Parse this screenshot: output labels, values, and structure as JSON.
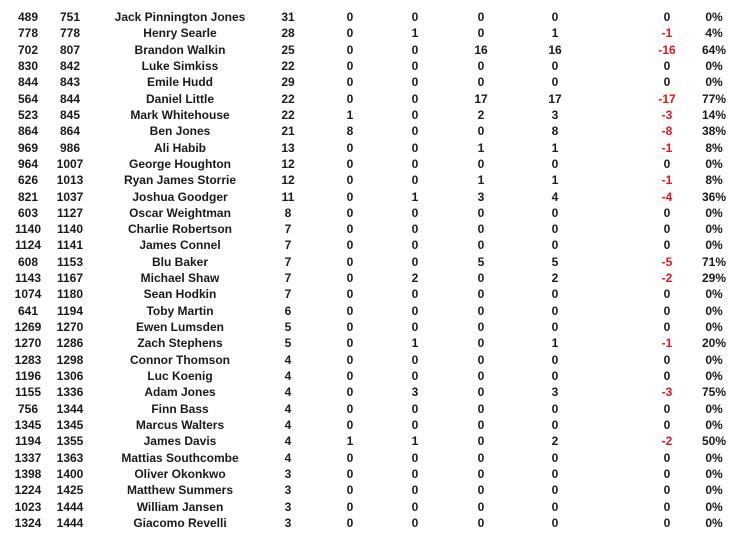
{
  "colors": {
    "text": "#1a1a1a",
    "negative": "#e0161b"
  },
  "rows": [
    [
      "489",
      "751",
      "Jack Pinnington Jones",
      "31",
      "0",
      "0",
      "0",
      "0",
      "0",
      "0%"
    ],
    [
      "778",
      "778",
      "Henry Searle",
      "28",
      "0",
      "1",
      "0",
      "1",
      "-1",
      "4%"
    ],
    [
      "702",
      "807",
      "Brandon Walkin",
      "25",
      "0",
      "0",
      "16",
      "16",
      "-16",
      "64%"
    ],
    [
      "830",
      "842",
      "Luke Simkiss",
      "22",
      "0",
      "0",
      "0",
      "0",
      "0",
      "0%"
    ],
    [
      "844",
      "843",
      "Emile Hudd",
      "29",
      "0",
      "0",
      "0",
      "0",
      "0",
      "0%"
    ],
    [
      "564",
      "844",
      "Daniel Little",
      "22",
      "0",
      "0",
      "17",
      "17",
      "-17",
      "77%"
    ],
    [
      "523",
      "845",
      "Mark Whitehouse",
      "22",
      "1",
      "0",
      "2",
      "3",
      "-3",
      "14%"
    ],
    [
      "864",
      "864",
      "Ben Jones",
      "21",
      "8",
      "0",
      "0",
      "8",
      "-8",
      "38%"
    ],
    [
      "969",
      "986",
      "Ali Habib",
      "13",
      "0",
      "0",
      "1",
      "1",
      "-1",
      "8%"
    ],
    [
      "964",
      "1007",
      "George Houghton",
      "12",
      "0",
      "0",
      "0",
      "0",
      "0",
      "0%"
    ],
    [
      "626",
      "1013",
      "Ryan James Storrie",
      "12",
      "0",
      "0",
      "1",
      "1",
      "-1",
      "8%"
    ],
    [
      "821",
      "1037",
      "Joshua Goodger",
      "11",
      "0",
      "1",
      "3",
      "4",
      "-4",
      "36%"
    ],
    [
      "603",
      "1127",
      "Oscar Weightman",
      "8",
      "0",
      "0",
      "0",
      "0",
      "0",
      "0%"
    ],
    [
      "1140",
      "1140",
      "Charlie Robertson",
      "7",
      "0",
      "0",
      "0",
      "0",
      "0",
      "0%"
    ],
    [
      "1124",
      "1141",
      "James Connel",
      "7",
      "0",
      "0",
      "0",
      "0",
      "0",
      "0%"
    ],
    [
      "608",
      "1153",
      "Blu Baker",
      "7",
      "0",
      "0",
      "5",
      "5",
      "-5",
      "71%"
    ],
    [
      "1143",
      "1167",
      "Michael Shaw",
      "7",
      "0",
      "2",
      "0",
      "2",
      "-2",
      "29%"
    ],
    [
      "1074",
      "1180",
      "Sean Hodkin",
      "7",
      "0",
      "0",
      "0",
      "0",
      "0",
      "0%"
    ],
    [
      "641",
      "1194",
      "Toby Martin",
      "6",
      "0",
      "0",
      "0",
      "0",
      "0",
      "0%"
    ],
    [
      "1269",
      "1270",
      "Ewen Lumsden",
      "5",
      "0",
      "0",
      "0",
      "0",
      "0",
      "0%"
    ],
    [
      "1270",
      "1286",
      "Zach Stephens",
      "5",
      "0",
      "1",
      "0",
      "1",
      "-1",
      "20%"
    ],
    [
      "1283",
      "1298",
      "Connor Thomson",
      "4",
      "0",
      "0",
      "0",
      "0",
      "0",
      "0%"
    ],
    [
      "1196",
      "1306",
      "Luc Koenig",
      "4",
      "0",
      "0",
      "0",
      "0",
      "0",
      "0%"
    ],
    [
      "1155",
      "1336",
      "Adam Jones",
      "4",
      "0",
      "3",
      "0",
      "3",
      "-3",
      "75%"
    ],
    [
      "756",
      "1344",
      "Finn Bass",
      "4",
      "0",
      "0",
      "0",
      "0",
      "0",
      "0%"
    ],
    [
      "1345",
      "1345",
      "Marcus Walters",
      "4",
      "0",
      "0",
      "0",
      "0",
      "0",
      "0%"
    ],
    [
      "1194",
      "1355",
      "James Davis",
      "4",
      "1",
      "1",
      "0",
      "2",
      "-2",
      "50%"
    ],
    [
      "1337",
      "1363",
      "Mattias Southcombe",
      "4",
      "0",
      "0",
      "0",
      "0",
      "0",
      "0%"
    ],
    [
      "1398",
      "1400",
      "Oliver Okonkwo",
      "3",
      "0",
      "0",
      "0",
      "0",
      "0",
      "0%"
    ],
    [
      "1224",
      "1425",
      "Matthew Summers",
      "3",
      "0",
      "0",
      "0",
      "0",
      "0",
      "0%"
    ],
    [
      "1023",
      "1444",
      "William Jansen",
      "3",
      "0",
      "0",
      "0",
      "0",
      "0",
      "0%"
    ],
    [
      "1324",
      "1444",
      "Giacomo Revelli",
      "3",
      "0",
      "0",
      "0",
      "0",
      "0",
      "0%"
    ]
  ]
}
